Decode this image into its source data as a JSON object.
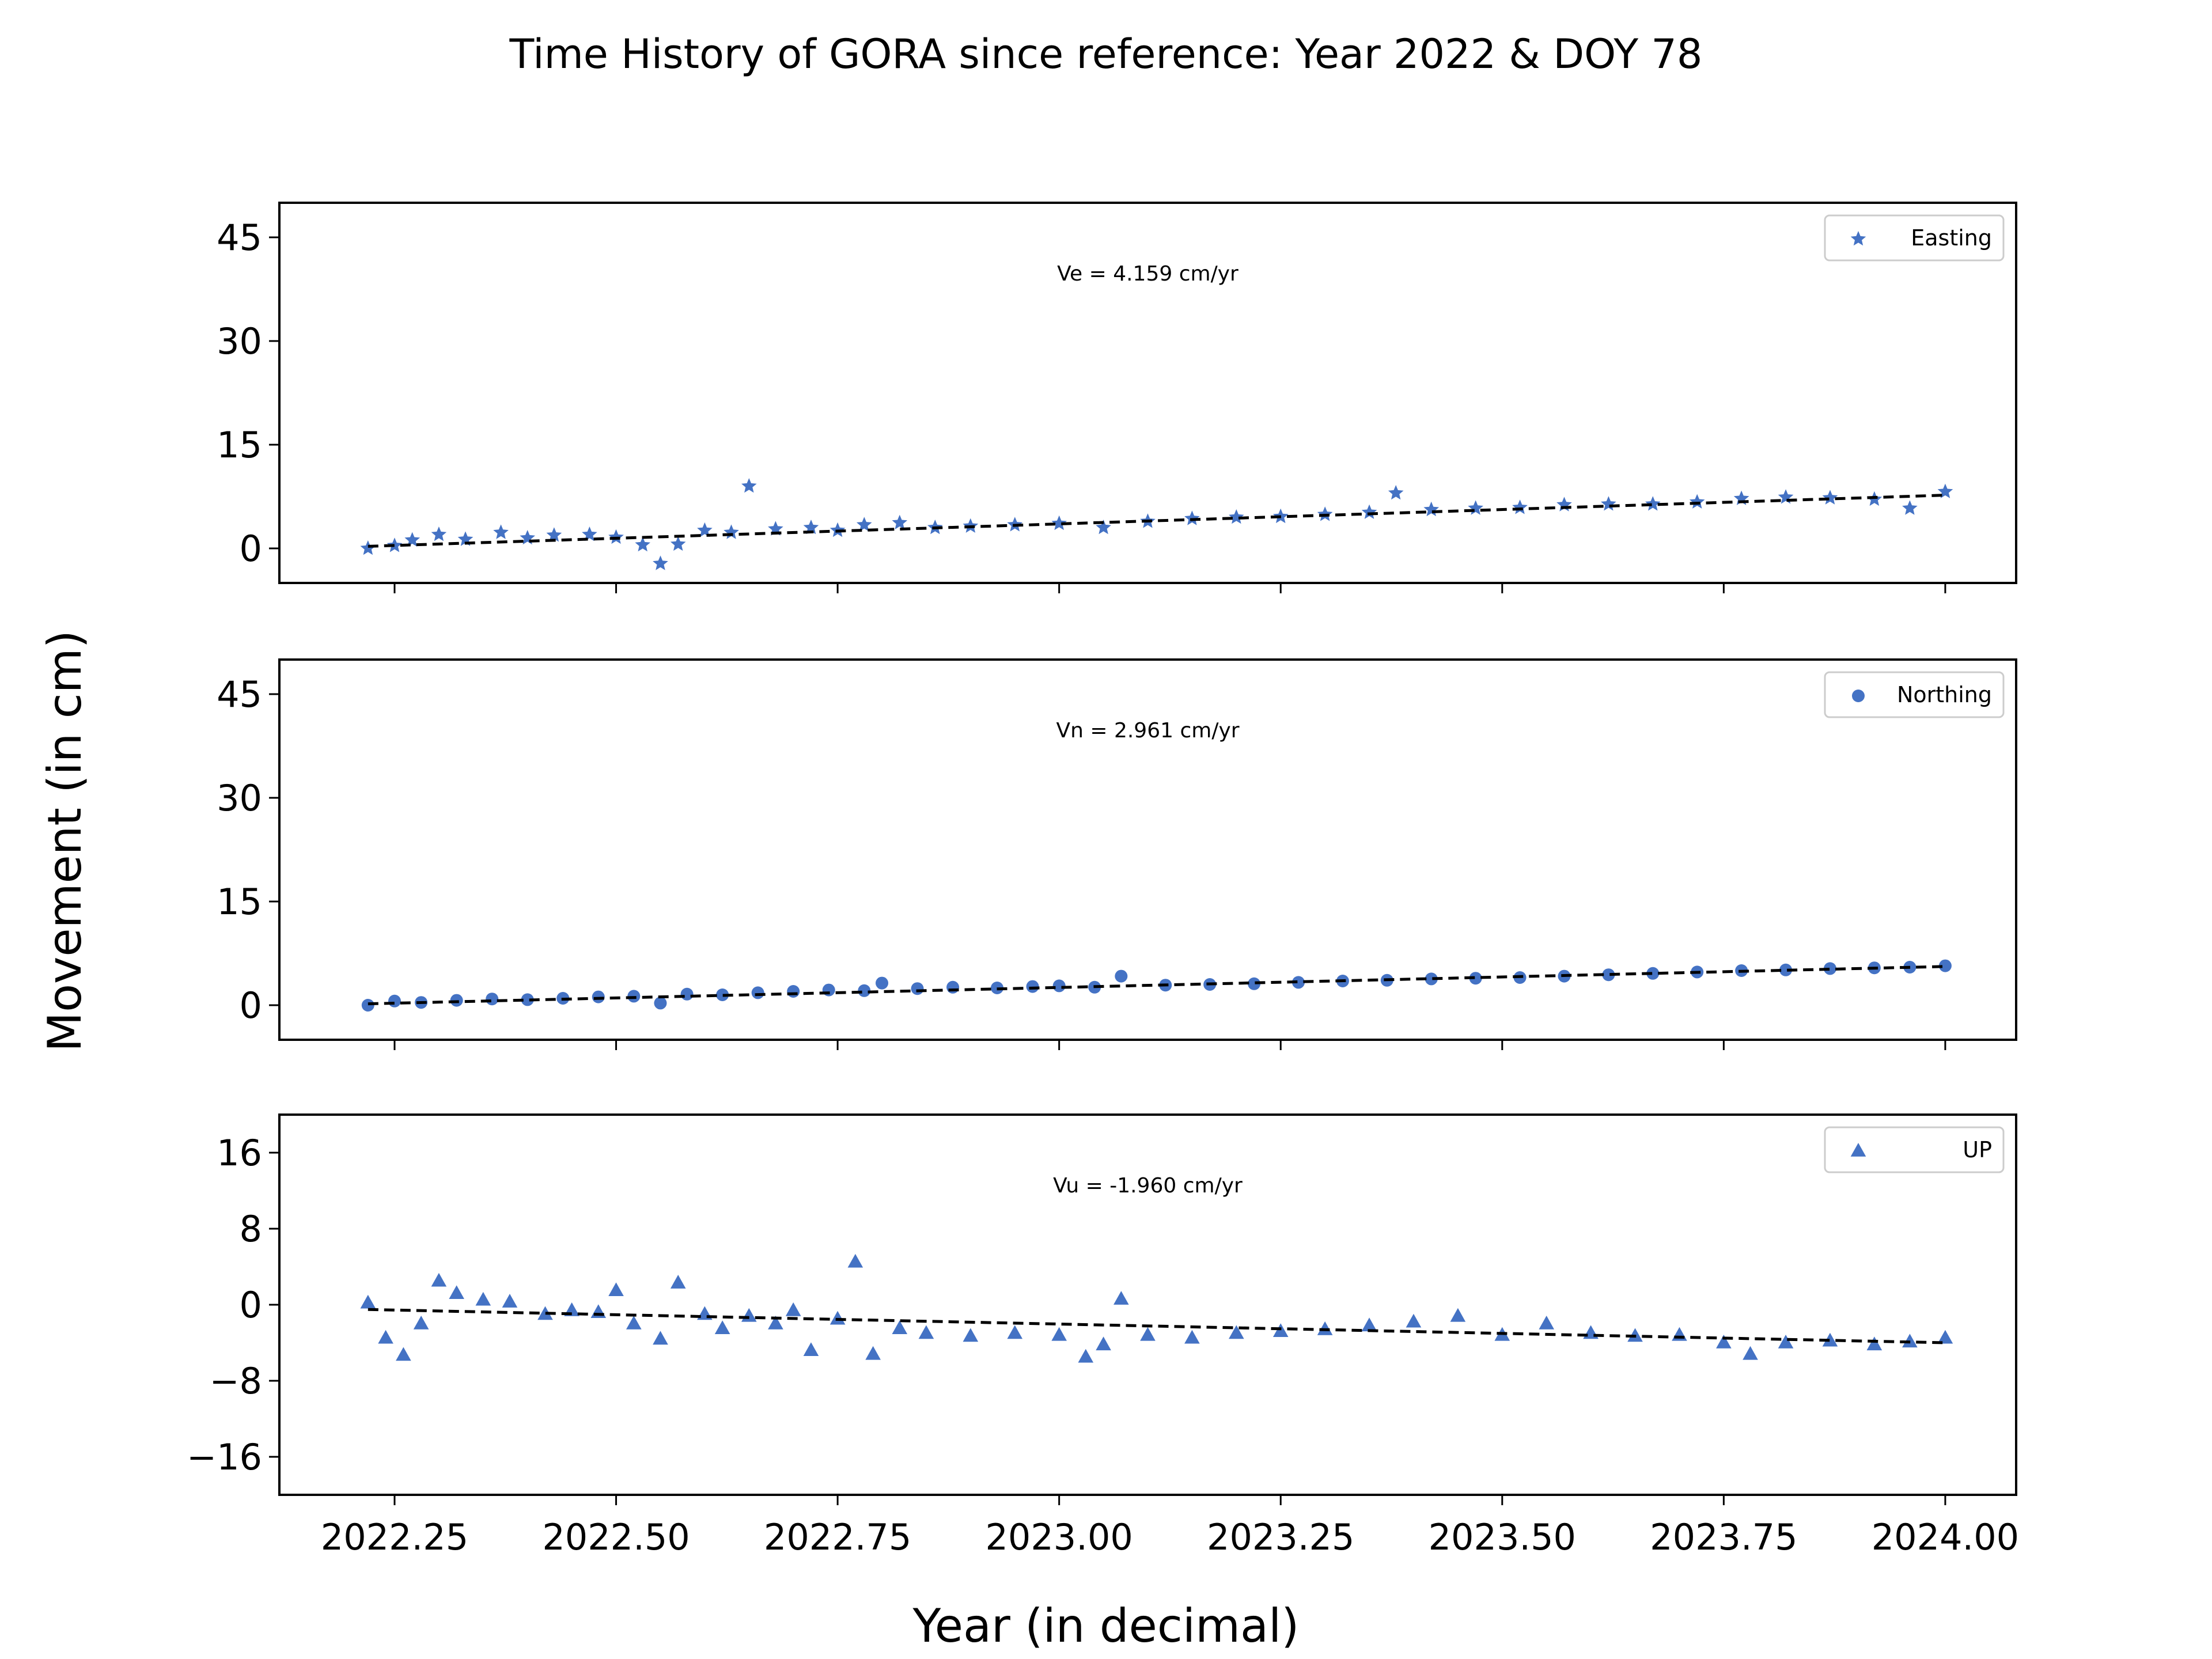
{
  "figure": {
    "title": "Time History of GORA since reference: Year 2022 & DOY 78",
    "xlabel": "Year (in decimal)",
    "ylabel": "Movement (in cm)"
  },
  "colors": {
    "marker": "#4472c4",
    "fit_line": "#000000",
    "legend_border": "#cccccc"
  },
  "chart_data": [
    {
      "type": "scatter",
      "name": "Easting",
      "marker": "star",
      "annotation": "Ve =  4.159 cm/yr",
      "velocity": 4.159,
      "legend_position": "top-right",
      "xlim": [
        2022.12,
        2024.08
      ],
      "ylim": [
        -5,
        50
      ],
      "xticks": [
        2022.25,
        2022.5,
        2022.75,
        2023.0,
        2023.25,
        2023.5,
        2023.75,
        2024.0
      ],
      "xtick_labels": [
        "2022.25",
        "2022.50",
        "2022.75",
        "2023.00",
        "2023.25",
        "2023.50",
        "2023.75",
        "2024.00"
      ],
      "yticks": [
        0,
        15,
        30,
        45
      ],
      "ytick_labels": [
        "0",
        "15",
        "30",
        "45"
      ],
      "fit": {
        "x": [
          2022.22,
          2024.0
        ],
        "y": [
          0.3,
          7.7
        ]
      },
      "x": [
        2022.22,
        2022.25,
        2022.27,
        2022.3,
        2022.33,
        2022.37,
        2022.4,
        2022.43,
        2022.47,
        2022.5,
        2022.53,
        2022.55,
        2022.57,
        2022.6,
        2022.63,
        2022.65,
        2022.68,
        2022.72,
        2022.75,
        2022.78,
        2022.82,
        2022.86,
        2022.9,
        2022.95,
        2023.0,
        2023.05,
        2023.1,
        2023.15,
        2023.2,
        2023.25,
        2023.3,
        2023.35,
        2023.38,
        2023.42,
        2023.47,
        2023.52,
        2023.57,
        2023.62,
        2023.67,
        2023.72,
        2023.77,
        2023.82,
        2023.87,
        2023.92,
        2023.96,
        2024.0
      ],
      "y": [
        0.0,
        0.4,
        1.2,
        2.0,
        1.3,
        2.3,
        1.5,
        1.9,
        2.0,
        1.6,
        0.5,
        -2.2,
        0.6,
        2.6,
        2.3,
        9.0,
        2.8,
        3.0,
        2.6,
        3.4,
        3.7,
        3.0,
        3.2,
        3.4,
        3.6,
        3.0,
        3.9,
        4.3,
        4.5,
        4.6,
        4.9,
        5.2,
        8.0,
        5.6,
        5.8,
        5.9,
        6.3,
        6.4,
        6.4,
        6.7,
        7.2,
        7.4,
        7.3,
        7.1,
        5.8,
        8.2
      ]
    },
    {
      "type": "scatter",
      "name": "Northing",
      "marker": "circle",
      "annotation": "Vn =  2.961 cm/yr",
      "velocity": 2.961,
      "legend_position": "top-right",
      "xlim": [
        2022.12,
        2024.08
      ],
      "ylim": [
        -5,
        50
      ],
      "xticks": [
        2022.25,
        2022.5,
        2022.75,
        2023.0,
        2023.25,
        2023.5,
        2023.75,
        2024.0
      ],
      "xtick_labels": [
        "2022.25",
        "2022.50",
        "2022.75",
        "2023.00",
        "2023.25",
        "2023.50",
        "2023.75",
        "2024.00"
      ],
      "yticks": [
        0,
        15,
        30,
        45
      ],
      "ytick_labels": [
        "0",
        "15",
        "30",
        "45"
      ],
      "fit": {
        "x": [
          2022.22,
          2024.0
        ],
        "y": [
          0.2,
          5.6
        ]
      },
      "x": [
        2022.22,
        2022.25,
        2022.28,
        2022.32,
        2022.36,
        2022.4,
        2022.44,
        2022.48,
        2022.52,
        2022.55,
        2022.58,
        2022.62,
        2022.66,
        2022.7,
        2022.74,
        2022.78,
        2022.8,
        2022.84,
        2022.88,
        2022.93,
        2022.97,
        2023.0,
        2023.04,
        2023.07,
        2023.12,
        2023.17,
        2023.22,
        2023.27,
        2023.32,
        2023.37,
        2023.42,
        2023.47,
        2023.52,
        2023.57,
        2023.62,
        2023.67,
        2023.72,
        2023.77,
        2023.82,
        2023.87,
        2023.92,
        2023.96,
        2024.0
      ],
      "y": [
        0.0,
        0.6,
        0.4,
        0.7,
        0.9,
        0.8,
        1.0,
        1.2,
        1.3,
        0.3,
        1.6,
        1.5,
        1.8,
        2.0,
        2.2,
        2.1,
        3.2,
        2.4,
        2.6,
        2.5,
        2.7,
        2.8,
        2.6,
        4.2,
        2.9,
        3.0,
        3.1,
        3.3,
        3.5,
        3.6,
        3.8,
        3.9,
        4.0,
        4.2,
        4.4,
        4.6,
        4.8,
        5.0,
        5.1,
        5.3,
        5.4,
        5.5,
        5.7
      ]
    },
    {
      "type": "scatter",
      "name": "UP",
      "marker": "triangle",
      "annotation": "Vu = -1.960 cm/yr",
      "velocity": -1.96,
      "legend_position": "top-right",
      "xlim": [
        2022.12,
        2024.08
      ],
      "ylim": [
        -20,
        20
      ],
      "xticks": [
        2022.25,
        2022.5,
        2022.75,
        2023.0,
        2023.25,
        2023.5,
        2023.75,
        2024.0
      ],
      "xtick_labels": [
        "2022.25",
        "2022.50",
        "2022.75",
        "2023.00",
        "2023.25",
        "2023.50",
        "2023.75",
        "2024.00"
      ],
      "yticks": [
        -16,
        -8,
        0,
        8,
        16
      ],
      "ytick_labels": [
        "−16",
        "−8",
        "0",
        "8",
        "16"
      ],
      "fit": {
        "x": [
          2022.22,
          2024.0
        ],
        "y": [
          -0.5,
          -4.0
        ]
      },
      "x": [
        2022.22,
        2022.24,
        2022.26,
        2022.28,
        2022.3,
        2022.32,
        2022.35,
        2022.38,
        2022.42,
        2022.45,
        2022.48,
        2022.5,
        2022.52,
        2022.55,
        2022.57,
        2022.6,
        2022.62,
        2022.65,
        2022.68,
        2022.7,
        2022.72,
        2022.75,
        2022.77,
        2022.79,
        2022.82,
        2022.85,
        2022.9,
        2022.95,
        2023.0,
        2023.03,
        2023.05,
        2023.07,
        2023.1,
        2023.15,
        2023.2,
        2023.25,
        2023.3,
        2023.35,
        2023.4,
        2023.45,
        2023.5,
        2023.55,
        2023.6,
        2023.65,
        2023.7,
        2023.75,
        2023.78,
        2023.82,
        2023.87,
        2023.92,
        2023.96,
        2024.0
      ],
      "y": [
        0.2,
        -3.5,
        -5.3,
        -2.0,
        2.5,
        1.2,
        0.5,
        0.3,
        -1.0,
        -0.6,
        -0.8,
        1.5,
        -2.0,
        -3.6,
        2.3,
        -1.0,
        -2.5,
        -1.2,
        -2.0,
        -0.6,
        -4.8,
        -1.5,
        4.5,
        -5.2,
        -2.5,
        -3.0,
        -3.3,
        -3.0,
        -3.2,
        -5.5,
        -4.2,
        0.6,
        -3.2,
        -3.5,
        -3.0,
        -2.8,
        -2.6,
        -2.2,
        -1.8,
        -1.2,
        -3.2,
        -2.0,
        -3.0,
        -3.3,
        -3.2,
        -4.0,
        -5.2,
        -4.0,
        -3.8,
        -4.2,
        -3.9,
        -3.5
      ]
    }
  ]
}
